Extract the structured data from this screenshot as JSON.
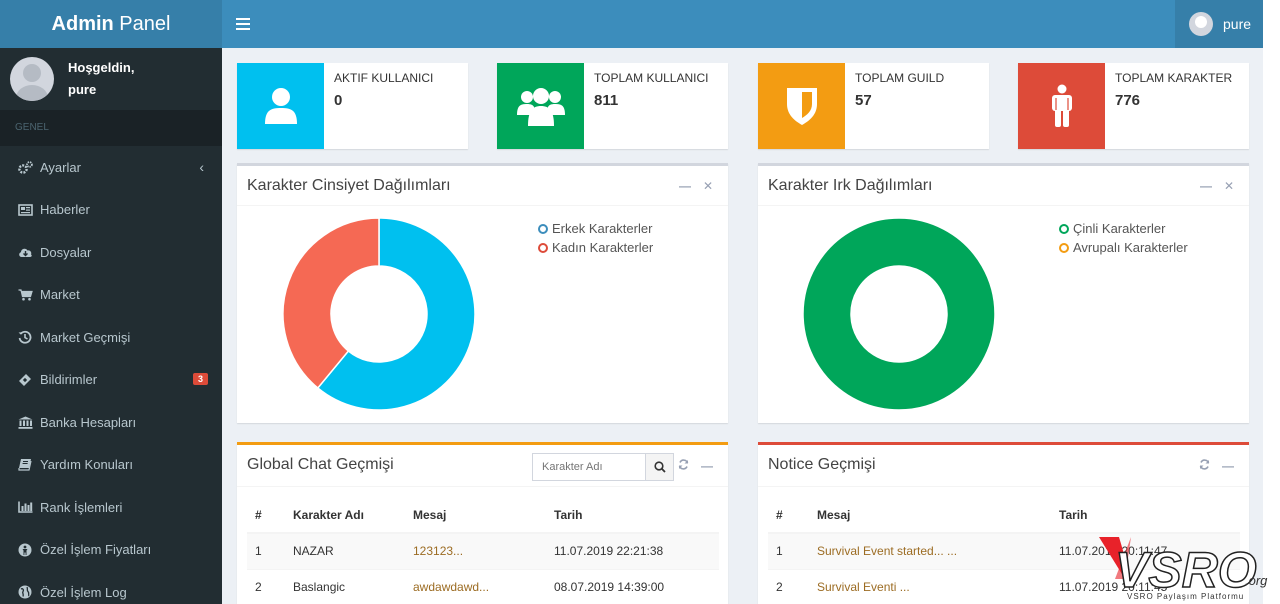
{
  "header": {
    "logo_bold": "Admin",
    "logo_rest": " Panel",
    "username": "pure"
  },
  "sidebar": {
    "welcome": "Hoşgeldin,",
    "user": "pure",
    "section": "GENEL",
    "items": [
      {
        "label": "Ayarlar",
        "icon": "gears-icon"
      },
      {
        "label": "Haberler",
        "icon": "newspaper-icon"
      },
      {
        "label": "Dosyalar",
        "icon": "cloud-download-icon"
      },
      {
        "label": "Market",
        "icon": "cart-icon"
      },
      {
        "label": "Market Geçmişi",
        "icon": "history-icon"
      },
      {
        "label": "Bildirimler",
        "icon": "ticket-icon",
        "badge": "3"
      },
      {
        "label": "Banka Hesapları",
        "icon": "bank-icon"
      },
      {
        "label": "Yardım Konuları",
        "icon": "book-icon"
      },
      {
        "label": "Rank İşlemleri",
        "icon": "bar-chart-icon"
      },
      {
        "label": "Özel İşlem Fiyatları",
        "icon": "user-circle-icon"
      },
      {
        "label": "Özel İşlem Log",
        "icon": "globe-icon"
      }
    ]
  },
  "stats": [
    {
      "label": "AKTIF KULLANICI",
      "value": "0",
      "color": "#00c0ef",
      "icon": "user-icon"
    },
    {
      "label": "TOPLAM KULLANICI",
      "value": "811",
      "color": "#00a65a",
      "icon": "users-icon"
    },
    {
      "label": "TOPLAM GUILD",
      "value": "57",
      "color": "#f39c12",
      "icon": "shield-icon"
    },
    {
      "label": "TOPLAM KARAKTER",
      "value": "776",
      "color": "#dd4b39",
      "icon": "male-icon"
    }
  ],
  "gender_chart": {
    "title": "Karakter Cinsiyet Dağılımları",
    "legend": [
      "Erkek Karakterler",
      "Kadın Karakterler"
    ]
  },
  "race_chart": {
    "title": "Karakter Irk Dağılımları",
    "legend": [
      "Çinli Karakterler",
      "Avrupalı Karakterler"
    ]
  },
  "chart_data": [
    {
      "type": "pie",
      "categories": [
        "Erkek Karakterler",
        "Kadın Karakterler"
      ],
      "values": [
        61,
        39
      ],
      "colors": [
        "#00c0ef",
        "#f56954"
      ]
    },
    {
      "type": "pie",
      "categories": [
        "Çinli Karakterler",
        "Avrupalı Karakterler"
      ],
      "values": [
        100,
        0
      ],
      "colors": [
        "#00a65a",
        "#f39c12"
      ]
    }
  ],
  "chat": {
    "title": "Global Chat Geçmişi",
    "search_placeholder": "Karakter Adı",
    "columns": [
      "#",
      "Karakter Adı",
      "Mesaj",
      "Tarih"
    ],
    "rows": [
      [
        "1",
        "NAZAR",
        "123123...",
        "11.07.2019 22:21:38"
      ],
      [
        "2",
        "Baslangic",
        "awdawdawd...",
        "08.07.2019 14:39:00"
      ]
    ]
  },
  "notice": {
    "title": "Notice Geçmişi",
    "columns": [
      "#",
      "Mesaj",
      "Tarih"
    ],
    "rows": [
      [
        "1",
        "Survival Event started... ...",
        "11.07.2019 20:11:47"
      ],
      [
        "2",
        "Survival Eventi ...",
        "11.07.2019 20:11:45"
      ]
    ]
  },
  "watermark": {
    "brand": "VSRO",
    "suffix": ".org",
    "tagline": "VSRO Paylaşım Platformu"
  }
}
